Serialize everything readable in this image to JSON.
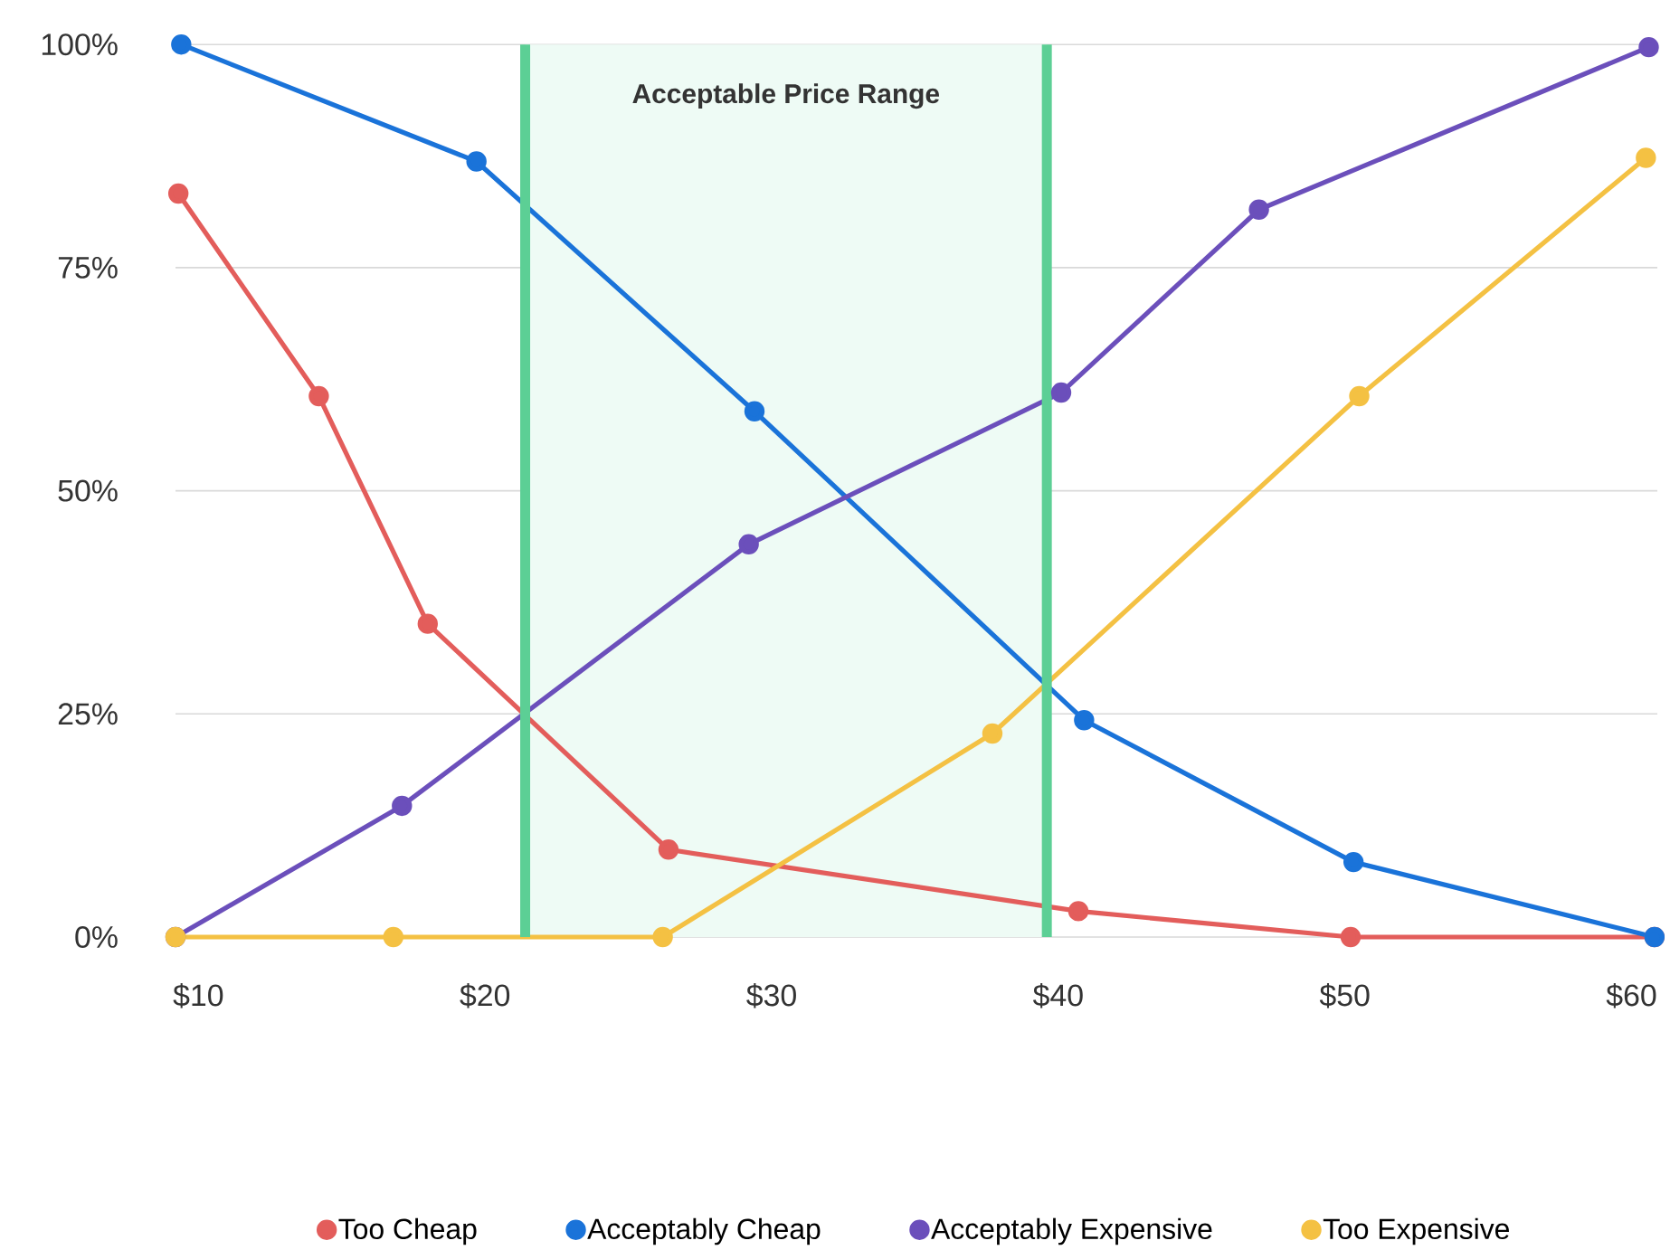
{
  "chart_data": {
    "type": "line",
    "series": [
      {
        "name": "Too Cheap",
        "color": "#e35d5b",
        "x": [
          9.3,
          14.2,
          18.0,
          26.4,
          40.7,
          50.2,
          60.8
        ],
        "values": [
          83.3,
          60.6,
          35.1,
          9.8,
          2.9,
          0,
          0
        ]
      },
      {
        "name": "Acceptably Cheap",
        "color": "#1a73d9",
        "x": [
          9.4,
          19.7,
          29.4,
          40.9,
          50.3,
          60.8
        ],
        "values": [
          100,
          86.9,
          58.9,
          24.3,
          8.4,
          0
        ]
      },
      {
        "name": "Acceptably Expensive",
        "color": "#6b4fbb",
        "x": [
          9.2,
          17.1,
          29.2,
          40.1,
          47.0,
          60.6
        ],
        "values": [
          0,
          14.7,
          44.0,
          61.0,
          81.5,
          99.7
        ]
      },
      {
        "name": "Too Expensive",
        "color": "#f4c143",
        "x": [
          9.2,
          16.8,
          26.2,
          37.7,
          50.5,
          60.5
        ],
        "values": [
          0,
          0,
          0,
          22.8,
          60.6,
          87.3
        ]
      }
    ],
    "xlim": [
      9.2,
      60.9
    ],
    "xticks": [
      {
        "value": 10,
        "label": "$10"
      },
      {
        "value": 20,
        "label": "$20"
      },
      {
        "value": 30,
        "label": "$30"
      },
      {
        "value": 40,
        "label": "$40"
      },
      {
        "value": 50,
        "label": "$50"
      },
      {
        "value": 60,
        "label": "$60"
      }
    ],
    "ylim": [
      0,
      100
    ],
    "yticks": [
      {
        "value": 0,
        "label": "0%"
      },
      {
        "value": 25,
        "label": "25%"
      },
      {
        "value": 50,
        "label": "50%"
      },
      {
        "value": 75,
        "label": "75%"
      },
      {
        "value": 100,
        "label": "100%"
      }
    ],
    "grid": "y",
    "legend": "bottom",
    "marker": "circle",
    "line_style": "solid",
    "bands": [
      {
        "axis": "x",
        "from": 21.4,
        "to": 39.6,
        "label": "Acceptable Price Range",
        "color": "#eefbf5"
      }
    ],
    "ref_lines": [
      {
        "axis": "x",
        "value": 21.4,
        "color": "#5ccf95"
      },
      {
        "axis": "x",
        "value": 39.6,
        "color": "#5ccf95"
      }
    ]
  }
}
